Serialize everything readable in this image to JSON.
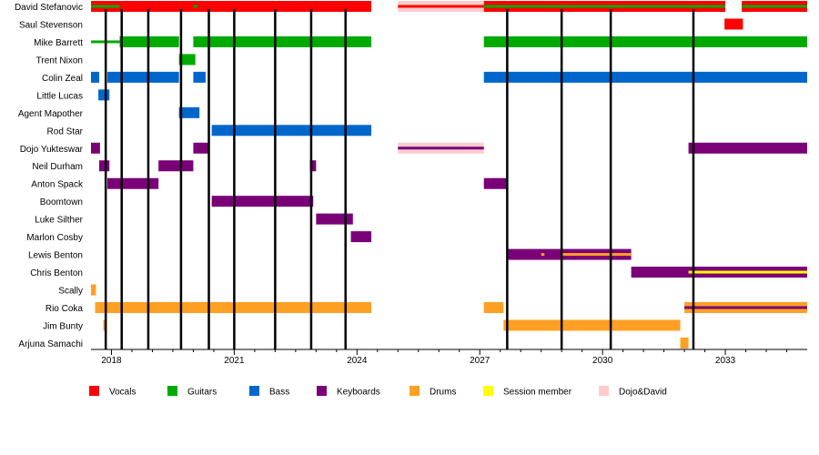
{
  "chart_data": {
    "type": "timeline",
    "x_range": [
      2017.5,
      2035.0
    ],
    "x_ticks": [
      {
        "value": 2018,
        "label": "2018"
      },
      {
        "value": 2021,
        "label": "2021"
      },
      {
        "value": 2024,
        "label": "2024"
      },
      {
        "value": 2027,
        "label": "2027"
      },
      {
        "value": 2030,
        "label": "2030"
      },
      {
        "value": 2033,
        "label": "2033"
      }
    ],
    "minor_ticks": [
      2018.5,
      2019,
      2019.5,
      2020,
      2020.5,
      2021.5,
      2022,
      2022.5,
      2023,
      2023.5,
      2024.5,
      2025,
      2025.5,
      2026,
      2026.5,
      2027.5,
      2028,
      2028.5,
      2029,
      2029.5,
      2030.5,
      2031,
      2031.5,
      2032,
      2032.5,
      2033.5,
      2034,
      2034.5
    ],
    "release_lines": [
      2017.86,
      2018.25,
      2018.9,
      2019.7,
      2020.38,
      2021.0,
      2022.0,
      2022.88,
      2023.72,
      2027.67,
      2029.0,
      2030.2,
      2032.22
    ],
    "members": [
      "David Stefanovic",
      "Saul Stevenson",
      "Mike Barrett",
      "Trent Nixon",
      "Colin Zeal",
      "Little Lucas",
      "Agent Mapother",
      "Rod Star",
      "Dojo Yukteswar",
      "Neil Durham",
      "Anton Spack",
      "Boomtown",
      "Luke Silther",
      "Marlon Cosby",
      "Lewis Benton",
      "Chris Benton",
      "Scally",
      "Rio Coka",
      "Jim Bunty",
      "Arjuna Samachi"
    ],
    "roles": [
      {
        "key": "vocals",
        "label": "Vocals",
        "color": "#ff0000"
      },
      {
        "key": "guitars",
        "label": "Guitars",
        "color": "#00aa00"
      },
      {
        "key": "bass",
        "label": "Bass",
        "color": "#0066cc"
      },
      {
        "key": "keyboards",
        "label": "Keyboards",
        "color": "#7a0077"
      },
      {
        "key": "drums",
        "label": "Drums",
        "color": "#ffa024"
      },
      {
        "key": "session",
        "label": "Session member",
        "color": "#ffff00"
      },
      {
        "key": "dojodavid",
        "label": "Dojo&David",
        "color": "#ffcccc"
      }
    ],
    "bars": [
      {
        "member": 0,
        "role": "vocals",
        "start": 2017.5,
        "end": 2024.35
      },
      {
        "member": 0,
        "role": "guitars",
        "start": 2017.5,
        "end": 2018.2,
        "thin": true
      },
      {
        "member": 0,
        "role": "guitars",
        "start": 2020.0,
        "end": 2020.1,
        "thin": true
      },
      {
        "member": 0,
        "role": "dojodavid",
        "start": 2025.0,
        "end": 2027.1
      },
      {
        "member": 0,
        "role": "vocals",
        "start": 2025.0,
        "end": 2027.1,
        "thin": true
      },
      {
        "member": 0,
        "role": "vocals",
        "start": 2027.1,
        "end": 2033.0
      },
      {
        "member": 0,
        "role": "guitars",
        "start": 2027.1,
        "end": 2033.0,
        "thin": true
      },
      {
        "member": 0,
        "role": "vocals",
        "start": 2033.4,
        "end": 2035.0
      },
      {
        "member": 0,
        "role": "guitars",
        "start": 2033.4,
        "end": 2035.0,
        "thin": true
      },
      {
        "member": 1,
        "role": "vocals",
        "start": 2032.98,
        "end": 2033.43
      },
      {
        "member": 2,
        "role": "guitars",
        "start": 2017.5,
        "end": 2018.2,
        "thin": true
      },
      {
        "member": 2,
        "role": "guitars",
        "start": 2018.2,
        "end": 2019.65
      },
      {
        "member": 2,
        "role": "guitars",
        "start": 2020.0,
        "end": 2024.35
      },
      {
        "member": 2,
        "role": "guitars",
        "start": 2027.1,
        "end": 2035.0
      },
      {
        "member": 3,
        "role": "guitars",
        "start": 2019.65,
        "end": 2020.05
      },
      {
        "member": 4,
        "role": "bass",
        "start": 2017.5,
        "end": 2017.7
      },
      {
        "member": 4,
        "role": "bass",
        "start": 2017.9,
        "end": 2019.65
      },
      {
        "member": 4,
        "role": "bass",
        "start": 2020.0,
        "end": 2020.3
      },
      {
        "member": 4,
        "role": "bass",
        "start": 2027.1,
        "end": 2035.0
      },
      {
        "member": 5,
        "role": "bass",
        "start": 2017.68,
        "end": 2017.95
      },
      {
        "member": 6,
        "role": "bass",
        "start": 2019.65,
        "end": 2020.15
      },
      {
        "member": 7,
        "role": "bass",
        "start": 2020.45,
        "end": 2024.35
      },
      {
        "member": 8,
        "role": "keyboards",
        "start": 2017.5,
        "end": 2017.72
      },
      {
        "member": 8,
        "role": "keyboards",
        "start": 2020.0,
        "end": 2020.4
      },
      {
        "member": 8,
        "role": "dojodavid",
        "start": 2025.0,
        "end": 2027.1
      },
      {
        "member": 8,
        "role": "keyboards",
        "start": 2025.0,
        "end": 2027.1,
        "thin": true
      },
      {
        "member": 8,
        "role": "keyboards",
        "start": 2032.1,
        "end": 2035.0
      },
      {
        "member": 9,
        "role": "keyboards",
        "start": 2017.7,
        "end": 2017.95
      },
      {
        "member": 9,
        "role": "keyboards",
        "start": 2019.15,
        "end": 2020.0
      },
      {
        "member": 9,
        "role": "keyboards",
        "start": 2022.85,
        "end": 2023.0
      },
      {
        "member": 10,
        "role": "keyboards",
        "start": 2017.9,
        "end": 2019.15
      },
      {
        "member": 10,
        "role": "keyboards",
        "start": 2027.1,
        "end": 2027.68
      },
      {
        "member": 11,
        "role": "keyboards",
        "start": 2020.45,
        "end": 2022.93
      },
      {
        "member": 12,
        "role": "keyboards",
        "start": 2023.0,
        "end": 2023.9
      },
      {
        "member": 13,
        "role": "keyboards",
        "start": 2023.85,
        "end": 2024.35
      },
      {
        "member": 14,
        "role": "keyboards",
        "start": 2027.68,
        "end": 2030.7
      },
      {
        "member": 14,
        "role": "drums",
        "start": 2028.5,
        "end": 2028.58,
        "thin": true
      },
      {
        "member": 14,
        "role": "drums",
        "start": 2029.0,
        "end": 2030.7,
        "thin": true
      },
      {
        "member": 15,
        "role": "keyboards",
        "start": 2030.7,
        "end": 2035.0
      },
      {
        "member": 15,
        "role": "session",
        "start": 2032.1,
        "end": 2035.0,
        "thin": true
      },
      {
        "member": 16,
        "role": "drums",
        "start": 2017.5,
        "end": 2017.62
      },
      {
        "member": 17,
        "role": "drums",
        "start": 2017.6,
        "end": 2024.35
      },
      {
        "member": 17,
        "role": "drums",
        "start": 2027.1,
        "end": 2027.58
      },
      {
        "member": 17,
        "role": "drums",
        "start": 2032.0,
        "end": 2035.0
      },
      {
        "member": 17,
        "role": "keyboards",
        "start": 2032.0,
        "end": 2035.0,
        "thin": true
      },
      {
        "member": 18,
        "role": "drums",
        "start": 2017.8,
        "end": 2017.86
      },
      {
        "member": 18,
        "role": "drums",
        "start": 2027.58,
        "end": 2031.9
      },
      {
        "member": 19,
        "role": "drums",
        "start": 2031.9,
        "end": 2032.1
      }
    ]
  }
}
